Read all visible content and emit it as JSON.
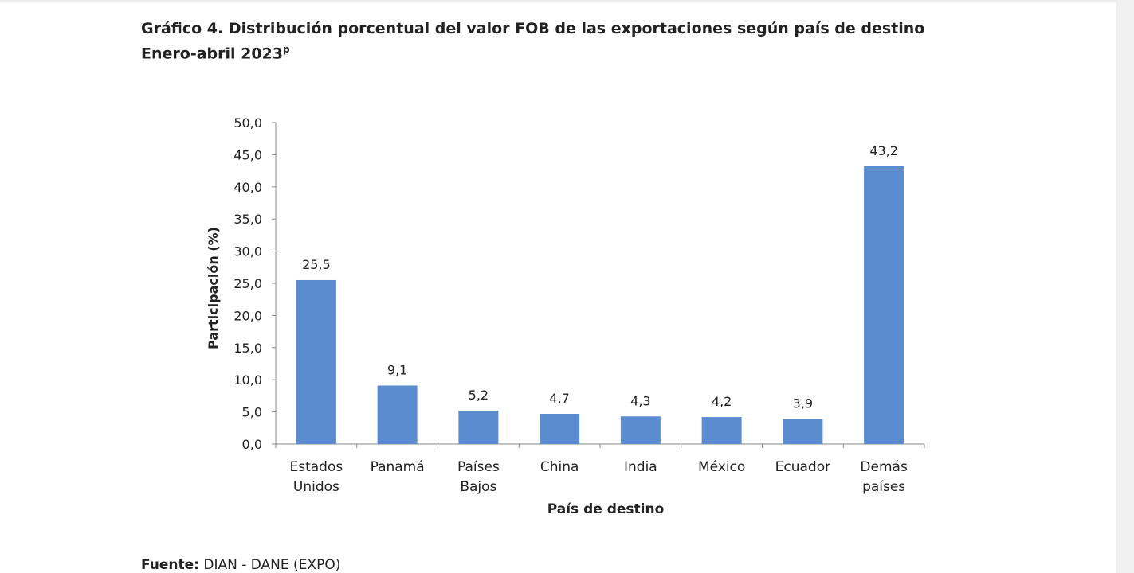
{
  "title_line1": "Gráfico 4. Distribución porcentual del valor FOB de las exportaciones según país de destino",
  "title_line2": "Enero-abril 2023",
  "title_superscript": "p",
  "source_label": "Fuente:",
  "source_text": " DIAN - DANE (EXPO)",
  "chart_data": {
    "type": "bar",
    "categories": [
      [
        "Estados",
        "Unidos"
      ],
      [
        "Panamá"
      ],
      [
        "Países",
        "Bajos"
      ],
      [
        "China"
      ],
      [
        "India"
      ],
      [
        "México"
      ],
      [
        "Ecuador"
      ],
      [
        "Demás",
        "países"
      ]
    ],
    "values": [
      25.5,
      9.1,
      5.2,
      4.7,
      4.3,
      4.2,
      3.9,
      43.2
    ],
    "data_labels": [
      "25,5",
      "9,1",
      "5,2",
      "4,7",
      "4,3",
      "4,2",
      "3,9",
      "43,2"
    ],
    "xlabel": "País de destino",
    "ylabel": "Participación (%)",
    "ylim": [
      0,
      50
    ],
    "yticks": [
      "0,0",
      "5,0",
      "10,0",
      "15,0",
      "20,0",
      "25,0",
      "30,0",
      "35,0",
      "40,0",
      "45,0",
      "50,0"
    ],
    "grid": false,
    "bar_color": "#5b8cd0"
  }
}
